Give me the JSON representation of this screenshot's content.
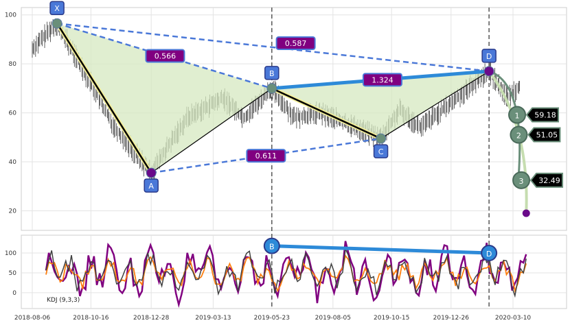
{
  "chart_data": [
    {
      "type": "line",
      "panel": "price",
      "x_tick_labels": [
        "2018-08-06",
        "2018-10-16",
        "2018-12-28",
        "2019-03-13",
        "2019-05-23",
        "2019-08-05",
        "2019-10-15",
        "2019-12-26",
        "2020-03-10"
      ],
      "y_ticks": [
        20,
        40,
        60,
        80,
        100
      ],
      "ylim": [
        12,
        103
      ],
      "grid": true,
      "pattern_points": [
        {
          "label": "X",
          "date": "2018-09-05",
          "value": 96.5
        },
        {
          "label": "A",
          "date": "2018-12-28",
          "value": 35.5
        },
        {
          "label": "B",
          "date": "2019-05-23",
          "value": 70.0
        },
        {
          "label": "C",
          "date": "2019-10-02",
          "value": 49.5
        },
        {
          "label": "D",
          "date": "2020-02-10",
          "value": 77.0
        }
      ],
      "ratios": [
        {
          "between": "X-A-B",
          "text": "0.566"
        },
        {
          "between": "X-D",
          "text": "0.587"
        },
        {
          "between": "A-C",
          "text": "0.611"
        },
        {
          "between": "B-D",
          "text": "1.324"
        }
      ],
      "targets": [
        {
          "label": "1",
          "value": 59.18,
          "text": "59.18"
        },
        {
          "label": "2",
          "value": 51.05,
          "text": "51.05"
        },
        {
          "label": "3",
          "value": 32.49,
          "text": "32.49"
        }
      ],
      "projection_end": {
        "date": "2020-03-26",
        "value": 19.0
      },
      "vertical_markers": [
        "2019-05-23",
        "2020-02-10"
      ]
    },
    {
      "type": "line",
      "panel": "indicator",
      "name": "KDJ (9,3,3)",
      "y_ticks": [
        0,
        50,
        100
      ],
      "ylim": [
        -40,
        145
      ],
      "series_colors": {
        "K": "#404040",
        "D": "#ff7f0e",
        "J": "#800080"
      },
      "divergence": [
        {
          "label": "B",
          "date": "2019-05-23",
          "value": 118
        },
        {
          "label": "D",
          "date": "2020-02-10",
          "value": 100
        }
      ]
    }
  ],
  "colors": {
    "pattern_fill": "#d6e8c0",
    "dashed_line": "#4a78d8",
    "solid_leg": "#2d8ad8",
    "label_box": "#4a78d8",
    "ratio_box": "#800080",
    "point_dot": "#6a8f7a",
    "d_dot": "#6a0a8a",
    "target_line": "#6a8f7a",
    "target_tag": "#000000"
  }
}
